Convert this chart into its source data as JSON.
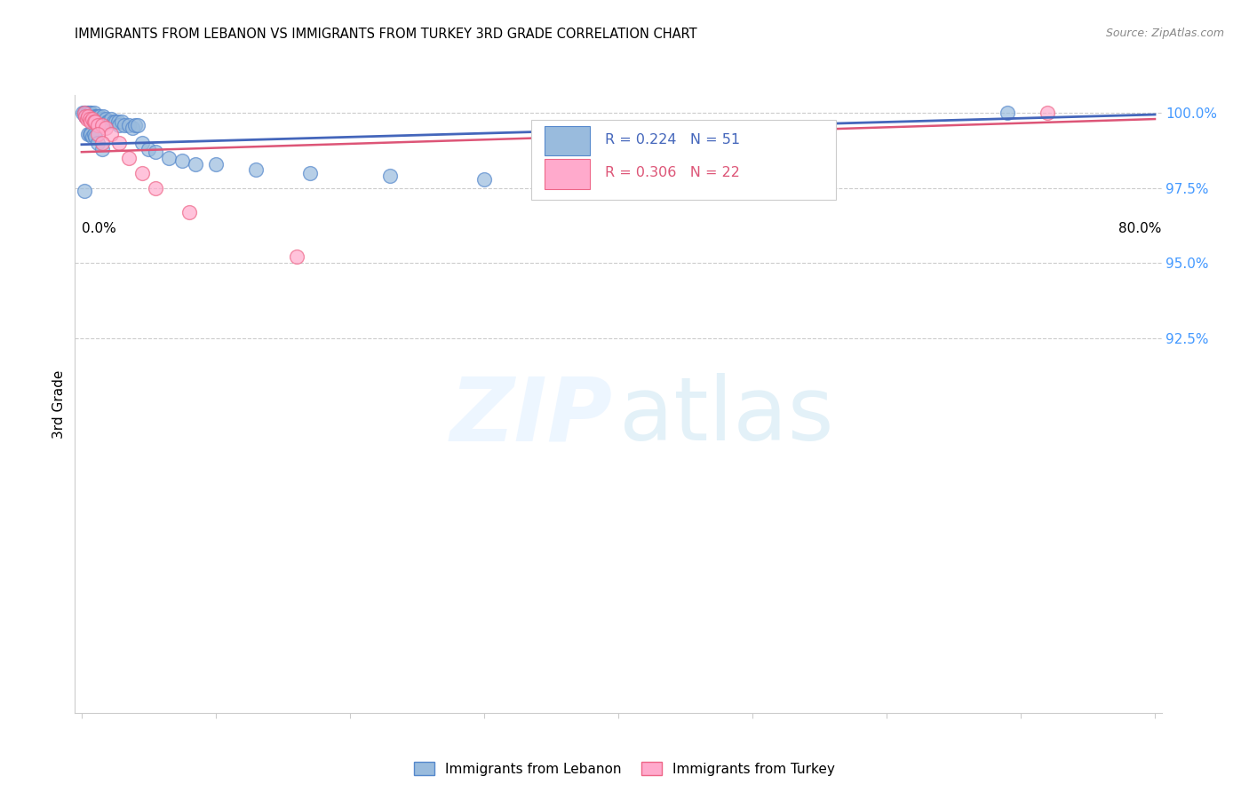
{
  "title": "IMMIGRANTS FROM LEBANON VS IMMIGRANTS FROM TURKEY 3RD GRADE CORRELATION CHART",
  "source": "Source: ZipAtlas.com",
  "ylabel": "3rd Grade",
  "ytick_labels": [
    "100.0%",
    "97.5%",
    "95.0%",
    "92.5%"
  ],
  "ytick_values": [
    1.0,
    0.975,
    0.95,
    0.925
  ],
  "xlim": [
    0.0,
    0.8
  ],
  "ylim": [
    0.8,
    1.005
  ],
  "legend_r_blue": "R = 0.224",
  "legend_n_blue": "N = 51",
  "legend_r_pink": "R = 0.306",
  "legend_n_pink": "N = 22",
  "blue_scatter_color": "#99BBDD",
  "blue_edge_color": "#5588CC",
  "pink_scatter_color": "#FFAACC",
  "pink_edge_color": "#EE6688",
  "blue_line_color": "#4466BB",
  "pink_line_color": "#DD5577",
  "lb_x": [
    0.001,
    0.002,
    0.003,
    0.003,
    0.004,
    0.005,
    0.006,
    0.007,
    0.008,
    0.009,
    0.01,
    0.011,
    0.012,
    0.013,
    0.015,
    0.016,
    0.018,
    0.019,
    0.02,
    0.022,
    0.024,
    0.025,
    0.027,
    0.028,
    0.03,
    0.032,
    0.035,
    0.038,
    0.04,
    0.042,
    0.005,
    0.006,
    0.007,
    0.008,
    0.009,
    0.01,
    0.012,
    0.015,
    0.045,
    0.05,
    0.055,
    0.065,
    0.075,
    0.085,
    0.1,
    0.13,
    0.17,
    0.23,
    0.3,
    0.69,
    0.002
  ],
  "lb_y": [
    1.0,
    1.0,
    1.0,
    0.999,
    1.0,
    1.0,
    1.0,
    1.0,
    0.999,
    1.0,
    0.999,
    0.999,
    0.999,
    0.999,
    0.998,
    0.999,
    0.998,
    0.997,
    0.997,
    0.998,
    0.997,
    0.997,
    0.997,
    0.996,
    0.997,
    0.996,
    0.996,
    0.995,
    0.996,
    0.996,
    0.993,
    0.993,
    0.993,
    0.992,
    0.993,
    0.992,
    0.99,
    0.988,
    0.99,
    0.988,
    0.987,
    0.985,
    0.984,
    0.983,
    0.983,
    0.981,
    0.98,
    0.979,
    0.978,
    1.0,
    0.974
  ],
  "tk_x": [
    0.002,
    0.003,
    0.004,
    0.005,
    0.006,
    0.007,
    0.008,
    0.009,
    0.01,
    0.012,
    0.015,
    0.018,
    0.022,
    0.028,
    0.035,
    0.045,
    0.012,
    0.015,
    0.055,
    0.08,
    0.16,
    0.72
  ],
  "tk_y": [
    1.0,
    0.999,
    0.998,
    0.999,
    0.998,
    0.997,
    0.998,
    0.997,
    0.997,
    0.996,
    0.996,
    0.995,
    0.993,
    0.99,
    0.985,
    0.98,
    0.993,
    0.99,
    0.975,
    0.967,
    0.952,
    1.0
  ]
}
